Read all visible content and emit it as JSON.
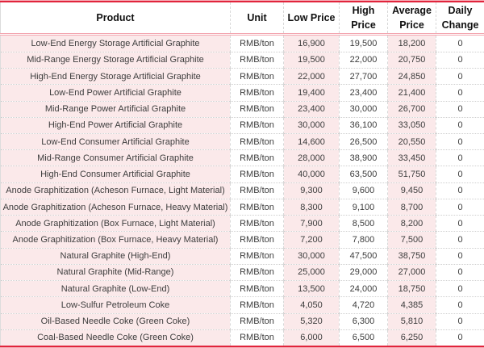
{
  "chart_data": {
    "type": "table",
    "title": "",
    "unit_note": "RMB/ton",
    "accent_red": "#e1243c",
    "accent_pink_row": "#fbe9ea",
    "columns": [
      {
        "key": "product",
        "label": "Product",
        "pink": true
      },
      {
        "key": "unit",
        "label": "Unit",
        "pink": false
      },
      {
        "key": "low_price",
        "label": "Low Price",
        "pink": true
      },
      {
        "key": "high_price",
        "label": "High Price",
        "pink": false
      },
      {
        "key": "average_price",
        "label": "Average Price",
        "pink": true
      },
      {
        "key": "daily_change",
        "label": "Daily Change",
        "pink": false
      }
    ],
    "rows": [
      {
        "product": "Low-End Energy Storage Artificial Graphite",
        "unit": "RMB/ton",
        "low_price": "16,900",
        "high_price": "19,500",
        "average_price": "18,200",
        "daily_change": "0"
      },
      {
        "product": "Mid-Range Energy Storage Artificial Graphite",
        "unit": "RMB/ton",
        "low_price": "19,500",
        "high_price": "22,000",
        "average_price": "20,750",
        "daily_change": "0"
      },
      {
        "product": "High-End Energy Storage Artificial Graphite",
        "unit": "RMB/ton",
        "low_price": "22,000",
        "high_price": "27,700",
        "average_price": "24,850",
        "daily_change": "0"
      },
      {
        "product": "Low-End Power Artificial Graphite",
        "unit": "RMB/ton",
        "low_price": "19,400",
        "high_price": "23,400",
        "average_price": "21,400",
        "daily_change": "0"
      },
      {
        "product": "Mid-Range Power Artificial Graphite",
        "unit": "RMB/ton",
        "low_price": "23,400",
        "high_price": "30,000",
        "average_price": "26,700",
        "daily_change": "0"
      },
      {
        "product": "High-End Power Artificial Graphite",
        "unit": "RMB/ton",
        "low_price": "30,000",
        "high_price": "36,100",
        "average_price": "33,050",
        "daily_change": "0"
      },
      {
        "product": "Low-End Consumer Artificial Graphite",
        "unit": "RMB/ton",
        "low_price": "14,600",
        "high_price": "26,500",
        "average_price": "20,550",
        "daily_change": "0"
      },
      {
        "product": "Mid-Range Consumer Artificial Graphite",
        "unit": "RMB/ton",
        "low_price": "28,000",
        "high_price": "38,900",
        "average_price": "33,450",
        "daily_change": "0"
      },
      {
        "product": "High-End Consumer Artificial Graphite",
        "unit": "RMB/ton",
        "low_price": "40,000",
        "high_price": "63,500",
        "average_price": "51,750",
        "daily_change": "0"
      },
      {
        "product": "Anode Graphitization (Acheson Furnace, Light Material)",
        "unit": "RMB/ton",
        "low_price": "9,300",
        "high_price": "9,600",
        "average_price": "9,450",
        "daily_change": "0"
      },
      {
        "product": "Anode Graphitization (Acheson Furnace, Heavy Material)",
        "unit": "RMB/ton",
        "low_price": "8,300",
        "high_price": "9,100",
        "average_price": "8,700",
        "daily_change": "0"
      },
      {
        "product": "Anode Graphitization (Box Furnace, Light Material)",
        "unit": "RMB/ton",
        "low_price": "7,900",
        "high_price": "8,500",
        "average_price": "8,200",
        "daily_change": "0"
      },
      {
        "product": "Anode Graphitization (Box Furnace, Heavy Material)",
        "unit": "RMB/ton",
        "low_price": "7,200",
        "high_price": "7,800",
        "average_price": "7,500",
        "daily_change": "0"
      },
      {
        "product": "Natural Graphite (High-End)",
        "unit": "RMB/ton",
        "low_price": "30,000",
        "high_price": "47,500",
        "average_price": "38,750",
        "daily_change": "0"
      },
      {
        "product": "Natural Graphite (Mid-Range)",
        "unit": "RMB/ton",
        "low_price": "25,000",
        "high_price": "29,000",
        "average_price": "27,000",
        "daily_change": "0"
      },
      {
        "product": "Natural Graphite (Low-End)",
        "unit": "RMB/ton",
        "low_price": "13,500",
        "high_price": "24,000",
        "average_price": "18,750",
        "daily_change": "0"
      },
      {
        "product": "Low-Sulfur Petroleum Coke",
        "unit": "RMB/ton",
        "low_price": "4,050",
        "high_price": "4,720",
        "average_price": "4,385",
        "daily_change": "0"
      },
      {
        "product": "Oil-Based Needle Coke (Green Coke)",
        "unit": "RMB/ton",
        "low_price": "5,320",
        "high_price": "6,300",
        "average_price": "5,810",
        "daily_change": "0"
      },
      {
        "product": "Coal-Based Needle Coke (Green Coke)",
        "unit": "RMB/ton",
        "low_price": "6,000",
        "high_price": "6,500",
        "average_price": "6,250",
        "daily_change": "0"
      }
    ]
  }
}
